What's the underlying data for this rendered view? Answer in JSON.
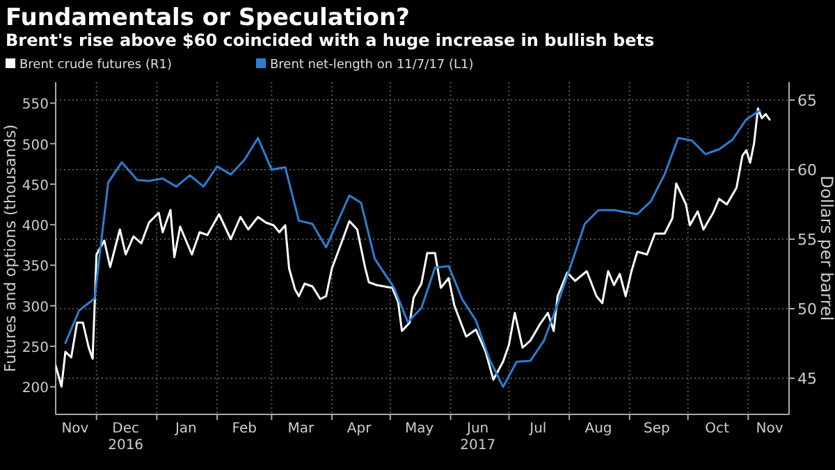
{
  "chart_data": {
    "type": "line",
    "title": "Fundamentals or Speculation?",
    "subtitle": "Brent's rise above $60 coincided with a huge increase in bullish bets",
    "ylabel": "Futures and options (thousands)",
    "y2label": "Dollars per barrel",
    "xlim": [
      "2016-11-10",
      "2017-11-22"
    ],
    "xticks": [
      {
        "value": "2016-12-01",
        "label": null
      },
      {
        "value": "2017-01-01",
        "label": null
      },
      {
        "value": "2017-02-01",
        "label": null
      },
      {
        "value": "2017-03-01",
        "label": null
      },
      {
        "value": "2017-04-01",
        "label": null
      },
      {
        "value": "2017-05-01",
        "label": null
      },
      {
        "value": "2017-06-01",
        "label": null
      },
      {
        "value": "2017-07-01",
        "label": null
      },
      {
        "value": "2017-08-01",
        "label": null
      },
      {
        "value": "2017-09-01",
        "label": null
      },
      {
        "value": "2017-10-01",
        "label": null
      },
      {
        "value": "2017-11-01",
        "label": null
      },
      {
        "value": "2016-11-20",
        "label": "Nov"
      },
      {
        "value": "2016-12-16",
        "label": "Dec\n2016"
      },
      {
        "value": "2017-01-16",
        "label": "Jan"
      },
      {
        "value": "2017-02-15",
        "label": "Feb"
      },
      {
        "value": "2017-03-16",
        "label": "Mar"
      },
      {
        "value": "2017-04-15",
        "label": "Apr"
      },
      {
        "value": "2017-05-16",
        "label": "May"
      },
      {
        "value": "2017-06-15",
        "label": "Jun\n2017"
      },
      {
        "value": "2017-07-16",
        "label": "Jul"
      },
      {
        "value": "2017-08-16",
        "label": "Aug"
      },
      {
        "value": "2017-09-15",
        "label": "Sep"
      },
      {
        "value": "2017-10-16",
        "label": "Oct"
      },
      {
        "value": "2017-11-12",
        "label": "Nov"
      }
    ],
    "ylim": [
      166,
      576
    ],
    "yticks": [
      200,
      250,
      300,
      350,
      400,
      450,
      500,
      550
    ],
    "y2lim": [
      42.4,
      66.3
    ],
    "y2ticks": [
      45,
      50,
      55,
      60,
      65
    ],
    "grid": true,
    "legend": "top left",
    "line_style": "solid",
    "series": [
      {
        "name": "Brent crude futures (R1)",
        "color": "#ffffff",
        "axis": "y2",
        "x": [
          "2016-11-10",
          "2016-11-13",
          "2016-11-15",
          "2016-11-18",
          "2016-11-21",
          "2016-11-24",
          "2016-11-27",
          "2016-11-29",
          "2016-12-01",
          "2016-12-05",
          "2016-12-08",
          "2016-12-13",
          "2016-12-16",
          "2016-12-20",
          "2016-12-24",
          "2016-12-28",
          "2017-01-02",
          "2017-01-04",
          "2017-01-08",
          "2017-01-10",
          "2017-01-13",
          "2017-01-19",
          "2017-01-23",
          "2017-01-27",
          "2017-02-02",
          "2017-02-08",
          "2017-02-13",
          "2017-02-17",
          "2017-02-22",
          "2017-02-26",
          "2017-03-02",
          "2017-03-05",
          "2017-03-08",
          "2017-03-10",
          "2017-03-13",
          "2017-03-15",
          "2017-03-18",
          "2017-03-22",
          "2017-03-26",
          "2017-03-29",
          "2017-04-01",
          "2017-04-05",
          "2017-04-10",
          "2017-04-14",
          "2017-04-18",
          "2017-04-20",
          "2017-04-24",
          "2017-05-02",
          "2017-05-05",
          "2017-05-07",
          "2017-05-11",
          "2017-05-13",
          "2017-05-17",
          "2017-05-20",
          "2017-05-24",
          "2017-05-27",
          "2017-05-31",
          "2017-06-03",
          "2017-06-09",
          "2017-06-14",
          "2017-06-19",
          "2017-06-23",
          "2017-06-28",
          "2017-07-01",
          "2017-07-04",
          "2017-07-08",
          "2017-07-12",
          "2017-07-17",
          "2017-07-21",
          "2017-07-24",
          "2017-07-26",
          "2017-07-31",
          "2017-08-04",
          "2017-08-10",
          "2017-08-15",
          "2017-08-18",
          "2017-08-21",
          "2017-08-24",
          "2017-08-27",
          "2017-08-30",
          "2017-09-02",
          "2017-09-05",
          "2017-09-10",
          "2017-09-14",
          "2017-09-19",
          "2017-09-23",
          "2017-09-25",
          "2017-09-30",
          "2017-10-02",
          "2017-10-06",
          "2017-10-09",
          "2017-10-14",
          "2017-10-17",
          "2017-10-21",
          "2017-10-26",
          "2017-10-29",
          "2017-10-31",
          "2017-11-02",
          "2017-11-04",
          "2017-11-06",
          "2017-11-08",
          "2017-11-10",
          "2017-11-12"
        ],
        "values": [
          45.9,
          44.4,
          46.9,
          46.5,
          49.0,
          49.0,
          47.2,
          46.4,
          53.9,
          54.9,
          53.0,
          55.7,
          53.9,
          55.2,
          54.7,
          56.2,
          56.9,
          55.5,
          57.1,
          53.7,
          55.9,
          53.9,
          55.5,
          55.3,
          56.8,
          55.0,
          56.6,
          55.7,
          56.6,
          56.2,
          56.0,
          55.5,
          56.0,
          52.9,
          51.4,
          50.9,
          51.8,
          51.6,
          50.7,
          50.9,
          52.9,
          54.4,
          56.3,
          55.7,
          53.0,
          51.9,
          51.7,
          51.5,
          50.5,
          48.4,
          49.0,
          50.8,
          51.8,
          54.0,
          54.0,
          51.5,
          52.2,
          50.2,
          48.0,
          48.5,
          46.9,
          44.9,
          46.2,
          47.4,
          49.7,
          47.2,
          47.7,
          48.9,
          49.7,
          48.4,
          50.9,
          52.6,
          52.0,
          52.7,
          50.9,
          50.4,
          52.7,
          51.7,
          52.5,
          50.9,
          52.7,
          54.1,
          53.9,
          55.4,
          55.4,
          56.5,
          59.0,
          57.5,
          56.0,
          57.0,
          55.7,
          56.9,
          57.9,
          57.5,
          58.7,
          61.0,
          61.4,
          60.5,
          61.9,
          64.4,
          63.7,
          64.0,
          63.6
        ]
      },
      {
        "name": "Brent net-length on 11/7/17 (L1)",
        "color": "#2a7fd4",
        "axis": "y",
        "x": [
          "2016-11-15",
          "2016-11-22",
          "2016-11-30",
          "2016-12-07",
          "2016-12-14",
          "2016-12-22",
          "2016-12-28",
          "2017-01-04",
          "2017-01-11",
          "2017-01-18",
          "2017-01-25",
          "2017-02-01",
          "2017-02-08",
          "2017-02-15",
          "2017-02-22",
          "2017-03-01",
          "2017-03-08",
          "2017-03-15",
          "2017-03-22",
          "2017-03-29",
          "2017-04-10",
          "2017-04-16",
          "2017-04-23",
          "2017-05-03",
          "2017-05-10",
          "2017-05-17",
          "2017-05-24",
          "2017-05-31",
          "2017-06-07",
          "2017-06-14",
          "2017-06-21",
          "2017-06-28",
          "2017-07-05",
          "2017-07-12",
          "2017-07-19",
          "2017-07-26",
          "2017-08-02",
          "2017-08-09",
          "2017-08-16",
          "2017-08-24",
          "2017-09-05",
          "2017-09-12",
          "2017-09-19",
          "2017-09-26",
          "2017-10-03",
          "2017-10-10",
          "2017-10-17",
          "2017-10-24",
          "2017-10-31",
          "2017-11-07"
        ],
        "values": [
          254,
          294,
          309,
          452,
          477,
          455,
          454,
          457,
          447,
          461,
          447,
          472,
          462,
          480,
          507,
          468,
          471,
          405,
          401,
          372,
          436,
          427,
          358,
          322,
          280,
          297,
          347,
          349,
          308,
          282,
          234,
          200,
          231,
          232,
          257,
          302,
          351,
          401,
          418,
          418,
          413,
          429,
          462,
          507,
          504,
          487,
          493,
          505,
          530,
          541
        ]
      }
    ]
  }
}
